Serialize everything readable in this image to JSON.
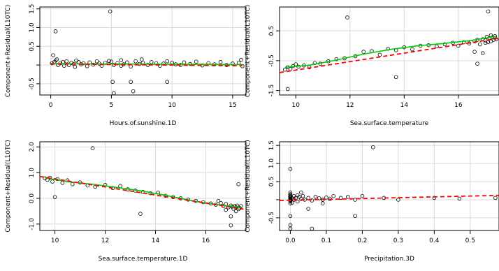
{
  "chart_data": [
    {
      "type": "scatter",
      "xlabel": "Hours.of.sunshine.1D",
      "ylabel": "Component+Residual(L10TC)",
      "xlim": [
        -0.9,
        16.1
      ],
      "ylim": [
        -0.8,
        1.55
      ],
      "xticks": [
        0,
        5,
        10,
        15
      ],
      "xtick_labels": [
        "0",
        "5",
        "10",
        "15"
      ],
      "yticks": [
        -0.5,
        0.0,
        0.5,
        1.0,
        1.5
      ],
      "ytick_labels": [
        "-0.5",
        "",
        "0.5",
        "1.0",
        "1.5"
      ],
      "grid": true,
      "fit_line": {
        "x": [
          0,
          15.8
        ],
        "y": [
          0.03,
          -0.02
        ],
        "color": "#ff0000"
      },
      "smooth_line": {
        "x": [
          0,
          3,
          6,
          9,
          12,
          15.8
        ],
        "y": [
          0.04,
          0.03,
          0.03,
          0.02,
          0.02,
          0.01
        ],
        "color": "#00cc00"
      },
      "x": [
        0.1,
        0.3,
        0.4,
        0.6,
        0.8,
        1.0,
        1.1,
        1.3,
        1.5,
        1.7,
        1.9,
        2.0,
        2.3,
        2.5,
        2.7,
        3.0,
        3.2,
        3.5,
        3.8,
        4.0,
        4.2,
        4.5,
        4.8,
        5.0,
        5.2,
        5.5,
        5.8,
        6.0,
        6.3,
        6.6,
        7.0,
        7.3,
        7.6,
        8.0,
        8.3,
        8.7,
        9.0,
        9.3,
        9.6,
        10.0,
        10.3,
        10.7,
        11.0,
        11.5,
        12.0,
        12.5,
        13.0,
        13.5,
        14.0,
        14.5,
        15.0,
        15.5,
        15.7,
        15.8,
        0.2,
        4.9,
        0.4,
        5.1,
        5.2,
        6.6,
        6.8,
        9.6,
        13.2,
        0.5,
        2.1,
        5.8,
        7.5
      ],
      "y": [
        0.05,
        0.08,
        0.12,
        0.0,
        0.05,
        0.08,
        -0.02,
        0.1,
        0.0,
        0.06,
        0.03,
        -0.05,
        0.08,
        0.02,
        0.05,
        -0.03,
        0.07,
        0.01,
        0.1,
        0.04,
        -0.02,
        0.06,
        0.11,
        0.09,
        0.0,
        0.05,
        0.13,
        0.02,
        0.07,
        -0.04,
        0.1,
        0.03,
        0.06,
        0.0,
        0.08,
        0.05,
        -0.02,
        0.04,
        0.1,
        0.06,
        0.02,
        0.0,
        0.07,
        0.03,
        0.09,
        -0.01,
        0.05,
        0.02,
        0.08,
        0.0,
        0.04,
        0.06,
        0.14,
        -0.03,
        0.26,
        1.43,
        0.9,
        -0.45,
        -0.75,
        -0.45,
        -0.7,
        -0.45,
        -0.85,
        0.15,
        0.12,
        -0.02,
        0.15
      ]
    },
    {
      "type": "scatter",
      "xlabel": "Sea.surface.temperature",
      "ylabel": "Component+Residual(L10TC)",
      "xlim": [
        9.4,
        17.5
      ],
      "ylim": [
        -1.65,
        1.3
      ],
      "xticks": [
        10,
        12,
        14,
        16
      ],
      "xtick_labels": [
        "10",
        "12",
        "14",
        "16"
      ],
      "yticks": [
        -1.5,
        -0.5,
        0.5
      ],
      "ytick_labels": [
        "-1.5",
        "-0.5",
        "0.5"
      ],
      "grid": true,
      "fit_line": {
        "x": [
          9.4,
          17.5
        ],
        "y": [
          -0.9,
          0.25
        ],
        "color": "#ff0000"
      },
      "smooth_line": {
        "x": [
          9.6,
          10.5,
          11.5,
          12.5,
          13.5,
          14.5,
          15.5,
          16.5,
          17.4
        ],
        "y": [
          -0.72,
          -0.65,
          -0.48,
          -0.28,
          -0.12,
          0.0,
          0.08,
          0.18,
          0.32
        ],
        "color": "#00cc00"
      },
      "x": [
        9.6,
        9.7,
        9.8,
        9.9,
        10.0,
        10.1,
        10.3,
        10.5,
        10.7,
        10.9,
        11.2,
        11.5,
        11.8,
        12.2,
        12.5,
        12.8,
        13.1,
        13.4,
        13.7,
        14.0,
        14.3,
        14.6,
        14.9,
        15.2,
        15.5,
        15.8,
        16.0,
        16.2,
        16.4,
        16.6,
        16.7,
        16.8,
        16.9,
        17.0,
        17.05,
        17.1,
        17.15,
        17.2,
        17.25,
        17.3,
        17.35,
        17.4,
        16.6,
        16.9,
        17.0,
        17.2,
        11.9,
        9.7,
        13.7,
        17.1,
        16.7
      ],
      "y": [
        -0.8,
        -0.72,
        -0.78,
        -0.68,
        -0.62,
        -0.7,
        -0.66,
        -0.72,
        -0.58,
        -0.6,
        -0.52,
        -0.45,
        -0.42,
        -0.35,
        -0.2,
        -0.18,
        -0.3,
        -0.1,
        -0.15,
        -0.05,
        -0.12,
        0.0,
        0.02,
        -0.02,
        0.05,
        0.1,
        0.0,
        0.12,
        0.08,
        0.15,
        0.2,
        0.05,
        0.22,
        0.18,
        0.3,
        0.12,
        0.25,
        0.35,
        0.28,
        0.2,
        0.32,
        0.22,
        -0.2,
        -0.25,
        0.1,
        0.15,
        0.95,
        -1.45,
        -1.05,
        1.15,
        -0.6
      ]
    },
    {
      "type": "scatter",
      "xlabel": "Sea.surface.temperature.1D",
      "ylabel": "Component+Residual(L10TC)",
      "xlim": [
        9.4,
        17.6
      ],
      "ylim": [
        -1.25,
        2.2
      ],
      "xticks": [
        10,
        12,
        14,
        16
      ],
      "xtick_labels": [
        "10",
        "12",
        "14",
        "16"
      ],
      "yticks": [
        -1.0,
        0.0,
        1.0,
        2.0
      ],
      "ytick_labels": [
        "-1.0",
        "0.0",
        "1.0",
        "2.0"
      ],
      "grid": true,
      "fit_line": {
        "x": [
          9.4,
          17.5
        ],
        "y": [
          0.85,
          -0.42
        ],
        "color": "#ff0000"
      },
      "smooth_line": {
        "x": [
          9.6,
          10.5,
          11.5,
          12.5,
          13.5,
          14.5,
          15.5,
          16.5,
          17.4
        ],
        "y": [
          0.8,
          0.65,
          0.55,
          0.42,
          0.28,
          0.1,
          -0.1,
          -0.25,
          -0.35
        ],
        "color": "#00cc00"
      },
      "x": [
        9.6,
        9.7,
        9.8,
        9.9,
        10.1,
        10.3,
        10.5,
        10.7,
        11.0,
        11.3,
        11.6,
        12.0,
        12.3,
        12.6,
        12.9,
        13.2,
        13.5,
        13.8,
        14.1,
        14.4,
        14.7,
        15.0,
        15.3,
        15.6,
        15.9,
        16.2,
        16.4,
        16.6,
        16.7,
        16.8,
        16.9,
        17.0,
        17.05,
        17.1,
        17.15,
        17.2,
        17.25,
        17.3,
        17.35,
        17.4,
        16.5,
        16.8,
        17.0,
        17.2,
        11.5,
        17.3,
        13.4,
        17.0,
        10.0
      ],
      "y": [
        0.78,
        0.72,
        0.8,
        0.65,
        0.75,
        0.6,
        0.7,
        0.55,
        0.62,
        0.5,
        0.45,
        0.52,
        0.4,
        0.48,
        0.35,
        0.3,
        0.25,
        0.2,
        0.22,
        0.1,
        0.05,
        0.0,
        -0.05,
        -0.1,
        -0.15,
        -0.2,
        -0.25,
        -0.18,
        -0.3,
        -0.22,
        -0.35,
        -0.28,
        -0.32,
        -0.4,
        -0.3,
        -0.35,
        -0.28,
        -0.42,
        -0.38,
        -0.3,
        -0.1,
        -0.45,
        -0.7,
        -0.5,
        1.95,
        0.55,
        -0.6,
        -1.05,
        0.05
      ]
    },
    {
      "type": "scatter",
      "xlabel": "Precipitation.3D",
      "ylabel": "Component+Residual(L10TC)",
      "xlim": [
        -0.03,
        0.58
      ],
      "ylim": [
        -0.85,
        1.6
      ],
      "xticks": [
        0.0,
        0.1,
        0.2,
        0.3,
        0.4,
        0.5
      ],
      "xtick_labels": [
        "0.0",
        "0.1",
        "0.2",
        "0.3",
        "0.4",
        "0.5"
      ],
      "yticks": [
        -0.5,
        0.0,
        0.5,
        1.0,
        1.5
      ],
      "ytick_labels": [
        "-0.5",
        "",
        "0.5",
        "1.0",
        "1.5"
      ],
      "grid": true,
      "fit_line": {
        "x": [
          -0.03,
          0.58
        ],
        "y": [
          -0.02,
          0.12
        ],
        "color": "#ff0000"
      },
      "x": [
        0.0,
        0.0,
        0.0,
        0.0,
        0.0,
        0.0,
        0.0,
        0.0,
        0.0,
        0.0,
        0.0,
        0.0,
        0.005,
        0.005,
        0.01,
        0.01,
        0.015,
        0.02,
        0.02,
        0.025,
        0.03,
        0.035,
        0.04,
        0.05,
        0.06,
        0.07,
        0.08,
        0.09,
        0.1,
        0.11,
        0.12,
        0.14,
        0.16,
        0.18,
        0.2,
        0.26,
        0.3,
        0.4,
        0.47,
        0.57,
        0.0,
        0.23,
        0.0,
        0.0,
        0.06,
        0.05,
        0.09,
        0.18,
        0.0,
        0.03
      ],
      "y": [
        0.05,
        0.1,
        0.0,
        -0.05,
        0.15,
        0.08,
        -0.1,
        0.2,
        0.02,
        0.12,
        -0.02,
        0.06,
        0.04,
        -0.08,
        0.1,
        0.0,
        0.05,
        0.12,
        -0.05,
        0.08,
        0.02,
        0.1,
        0.0,
        0.05,
        -0.02,
        0.08,
        0.04,
        0.0,
        0.06,
        0.02,
        0.1,
        0.05,
        0.08,
        0.0,
        0.1,
        0.05,
        0.0,
        0.05,
        0.03,
        0.05,
        0.85,
        1.45,
        -0.7,
        -0.8,
        -0.8,
        -0.25,
        -0.1,
        -0.45,
        -0.45,
        0.2
      ]
    }
  ]
}
